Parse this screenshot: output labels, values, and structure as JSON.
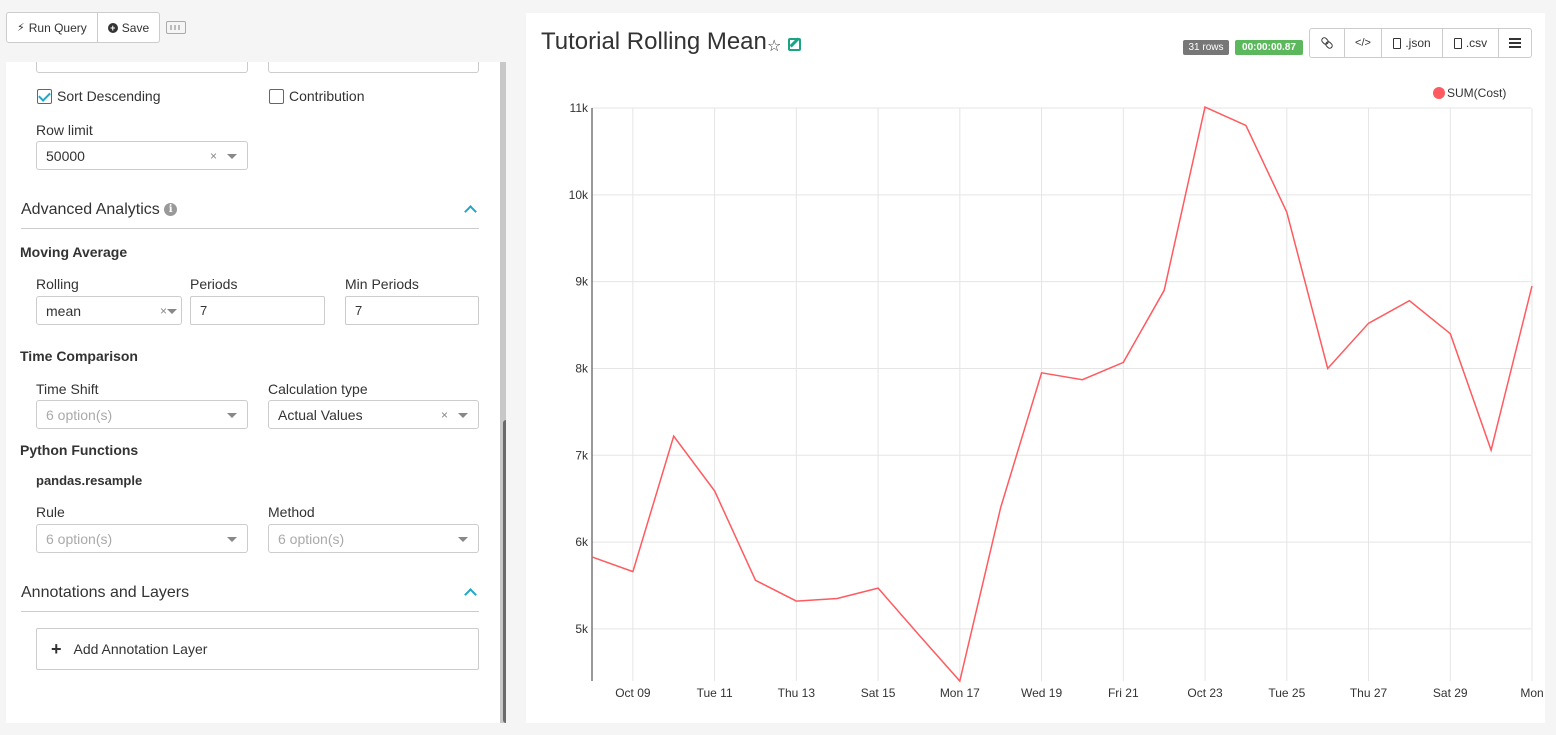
{
  "toolbar": {
    "run_query_label": "Run Query",
    "save_label": "Save"
  },
  "query_options": {
    "sort_descending_label": "Sort Descending",
    "sort_descending_checked": true,
    "contribution_label": "Contribution",
    "contribution_checked": false,
    "row_limit_label": "Row limit",
    "row_limit_value": "50000"
  },
  "advanced_analytics": {
    "title": "Advanced Analytics",
    "moving_average_title": "Moving Average",
    "rolling_label": "Rolling",
    "rolling_value": "mean",
    "periods_label": "Periods",
    "periods_value": "7",
    "min_periods_label": "Min Periods",
    "min_periods_value": "7",
    "time_comparison_title": "Time Comparison",
    "time_shift_label": "Time Shift",
    "time_shift_placeholder": "6 option(s)",
    "calc_type_label": "Calculation type",
    "calc_type_value": "Actual Values",
    "python_functions_title": "Python Functions",
    "resample_title": "pandas.resample",
    "rule_label": "Rule",
    "rule_placeholder": "6 option(s)",
    "method_label": "Method",
    "method_placeholder": "6 option(s)"
  },
  "annotations": {
    "title": "Annotations and Layers",
    "add_layer_label": "Add Annotation Layer"
  },
  "chart_header": {
    "title": "Tutorial Rolling Mean",
    "rows_badge": "31 rows",
    "time_badge": "00:00:00.87",
    "json_label": ".json",
    "csv_label": ".csv"
  },
  "colors": {
    "accent": "#20a7c9",
    "line": "#ff5a5f",
    "rows_badge": "#777777",
    "time_badge": "#5cb85c"
  },
  "chart_data": {
    "type": "line",
    "series": [
      {
        "name": "SUM(Cost)",
        "values": [
          5830,
          5660,
          7220,
          6590,
          5560,
          5320,
          5350,
          5470,
          4930,
          4400,
          6400,
          7950,
          7870,
          8070,
          8900,
          11010,
          10800,
          9800,
          8000,
          8520,
          8780,
          8400,
          7060,
          8950
        ]
      }
    ],
    "x_tick_labels": [
      "Oct 09",
      "Tue 11",
      "Thu 13",
      "Sat 15",
      "Mon 17",
      "Wed 19",
      "Fri 21",
      "Oct 23",
      "Tue 25",
      "Thu 27",
      "Sat 29",
      "Mon"
    ],
    "y_tick_labels": [
      "5k",
      "6k",
      "7k",
      "8k",
      "9k",
      "10k",
      "11k"
    ],
    "y_ticks": [
      5000,
      6000,
      7000,
      8000,
      9000,
      10000,
      11000
    ],
    "ylim": [
      4400,
      11000
    ],
    "grid": true,
    "legend": "top-right"
  }
}
